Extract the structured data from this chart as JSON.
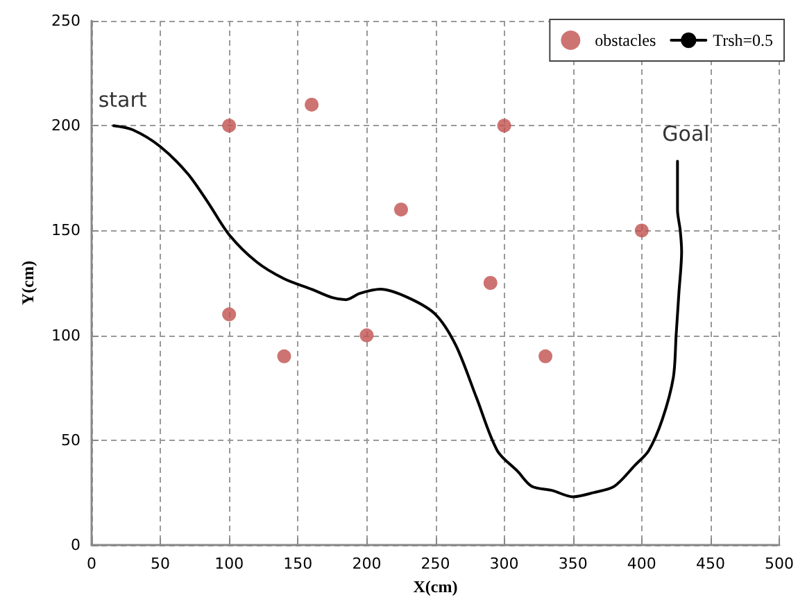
{
  "chart_data": {
    "type": "scatter",
    "xlabel": "X(cm)",
    "ylabel": "Y(cm)",
    "xlim": [
      0,
      500
    ],
    "xticks": [
      0,
      50,
      100,
      150,
      200,
      250,
      300,
      350,
      400,
      450,
      500
    ],
    "ylim": [
      0,
      250
    ],
    "yticks": [
      0,
      50,
      100,
      150,
      200,
      250
    ],
    "grid": true,
    "legend": "top right",
    "annotations": [
      {
        "text": "start",
        "x": 16,
        "y": 200
      },
      {
        "text": "Goal",
        "x": 426,
        "y": 184
      }
    ],
    "series": [
      {
        "name": "obstacles",
        "color": "#c0504d",
        "marker": "circle",
        "x": [
          100,
          160,
          100,
          140,
          200,
          225,
          290,
          300,
          330,
          400
        ],
        "values": [
          200,
          210,
          110,
          90,
          100,
          160,
          125,
          200,
          90,
          150
        ]
      },
      {
        "name": "Trsh=0.5",
        "type": "line",
        "color": "#000000",
        "marker": "none",
        "line_style": "solid",
        "x": [
          16,
          30,
          50,
          70,
          85,
          100,
          120,
          140,
          160,
          175,
          185,
          195,
          210,
          230,
          250,
          265,
          280,
          295,
          310,
          320,
          335,
          350,
          365,
          380,
          395,
          405,
          415,
          423,
          425,
          427,
          429,
          428,
          426,
          426
        ],
        "values": [
          200,
          198,
          190,
          177,
          163,
          148,
          135,
          127,
          122,
          118,
          117,
          120,
          122,
          118,
          110,
          95,
          70,
          45,
          35,
          28,
          26,
          23,
          25,
          28,
          38,
          45,
          60,
          80,
          100,
          120,
          140,
          150,
          160,
          183
        ]
      }
    ]
  }
}
